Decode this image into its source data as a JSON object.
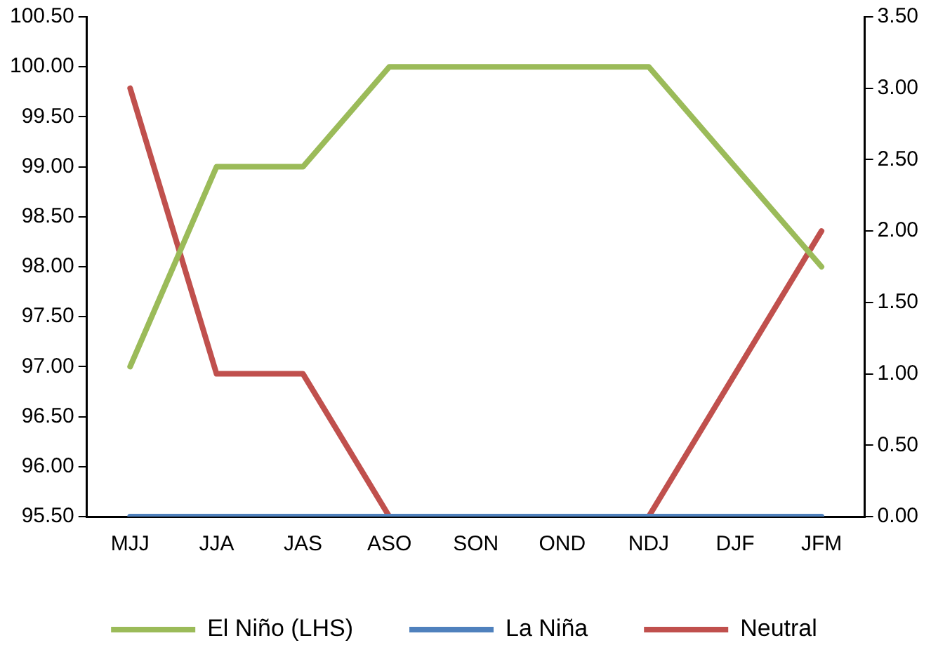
{
  "chart_data": {
    "type": "line",
    "categories": [
      "MJJ",
      "JJA",
      "JAS",
      "ASO",
      "SON",
      "OND",
      "NDJ",
      "DJF",
      "JFM"
    ],
    "series": [
      {
        "name": "El Niño (LHS)",
        "color": "#9bbb59",
        "values": [
          97,
          99,
          99,
          100,
          100,
          100,
          100,
          99,
          98
        ]
      },
      {
        "name": "La Niña",
        "color": "#4f81bd",
        "axis": "y2",
        "values": [
          0,
          0,
          0,
          0,
          0,
          0,
          0,
          0,
          0
        ]
      },
      {
        "name": "Neutral",
        "color": "#c0504d",
        "axis": "y2",
        "values": [
          3,
          1,
          1,
          0,
          0,
          0,
          0,
          1,
          2
        ]
      }
    ],
    "ylim": [
      95.5,
      100.5
    ],
    "yticks": [
      {
        "value": 95.5,
        "label": "95.50"
      },
      {
        "value": 96,
        "label": "96.00"
      },
      {
        "value": 96.5,
        "label": "96.50"
      },
      {
        "value": 97,
        "label": "97.00"
      },
      {
        "value": 97.5,
        "label": "97.50"
      },
      {
        "value": 98,
        "label": "98.00"
      },
      {
        "value": 98.5,
        "label": "98.50"
      },
      {
        "value": 99,
        "label": "99.00"
      },
      {
        "value": 99.5,
        "label": "99.50"
      },
      {
        "value": 100,
        "label": "100.00"
      },
      {
        "value": 100.5,
        "label": "100.50"
      }
    ],
    "y2lim": [
      0,
      3.5
    ],
    "y2ticks": [
      {
        "value": 0,
        "label": "0.00"
      },
      {
        "value": 0.5,
        "label": "0.50"
      },
      {
        "value": 1,
        "label": "1.00"
      },
      {
        "value": 1.5,
        "label": "1.50"
      },
      {
        "value": 2,
        "label": "2.00"
      },
      {
        "value": 2.5,
        "label": "2.50"
      },
      {
        "value": 3,
        "label": "3.00"
      },
      {
        "value": 3.5,
        "label": "3.50"
      }
    ],
    "grid": false,
    "legend": "bottom",
    "marker": "none",
    "line_style": "solid"
  }
}
